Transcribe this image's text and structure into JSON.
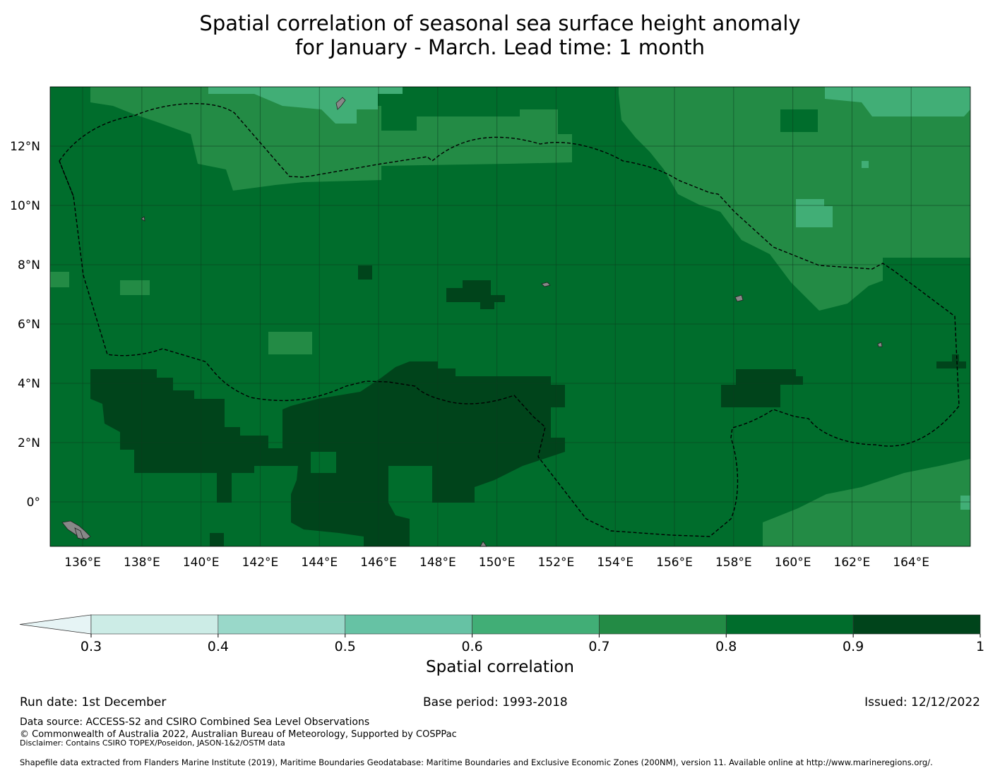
{
  "title": {
    "line1": "Spatial correlation of seasonal sea surface height anomaly",
    "line2": "for January - March. Lead time: 1 month"
  },
  "chart_data": {
    "type": "heatmap",
    "title": "Spatial correlation of seasonal sea surface height anomaly for January - March. Lead time: 1 month",
    "x_ticks": [
      "136°E",
      "138°E",
      "140°E",
      "142°E",
      "144°E",
      "146°E",
      "148°E",
      "150°E",
      "152°E",
      "154°E",
      "156°E",
      "158°E",
      "160°E",
      "162°E",
      "164°E"
    ],
    "y_ticks": [
      "12°N",
      "10°N",
      "8°N",
      "6°N",
      "4°N",
      "2°N",
      "0°"
    ],
    "lon_range": [
      134.9,
      166.0
    ],
    "lat_range": [
      -1.5,
      14.0
    ],
    "colorbar": {
      "label": "Spatial correlation",
      "boundaries": [
        "0.3",
        "0.4",
        "0.5",
        "0.6",
        "0.7",
        "0.8",
        "0.9",
        "1"
      ],
      "colors": [
        "#e6f4f5",
        "#ccece6",
        "#99d8c9",
        "#66c2a4",
        "#41ae76",
        "#238b45",
        "#006d2c",
        "#00441b"
      ],
      "extend": "min"
    },
    "regions": [
      {
        "value_range": "0.9-1",
        "color": "#00441b",
        "areas": [
          "136-145°E, 0-4°N",
          "144-152°E, -1-4°N",
          "157-161°E, 3-4.5°N",
          "148-150°E, 6.5-7.5°N",
          "Near 165.5°E, 4.5°N"
        ]
      },
      {
        "value_range": "0.8-0.9",
        "color": "#006d2c",
        "areas": [
          "Central domain from 136°E to 166°E, -1.5°N to 12°N"
        ]
      },
      {
        "value_range": "0.7-0.8",
        "color": "#238b45",
        "areas": [
          "North-east 153-166°E, 6-14°N",
          "South-east 157-166°E, -1.5-1°N",
          "North-west 137-150°E, 11-14°N"
        ]
      },
      {
        "value_range": "0.6-0.7",
        "color": "#41ae76",
        "areas": [
          "141-146°E, 13-14°N",
          "162-166°E, 13-14°N",
          "160-161°E, 9.5-10.5°N"
        ]
      }
    ]
  },
  "footer": {
    "run_date": "Run date: 1st December",
    "base_period": "Base period: 1993-2018",
    "issued": "Issued: 12/12/2022",
    "data_source": "Data source: ACCESS-S2 and CSIRO Combined Sea Level Observations",
    "copyright": "© Commonwealth of Australia 2022, Australian Bureau of Meteorology, Supported by COSPPac",
    "disclaimer": "Disclaimer: Contains CSIRO TOPEX/Poseidon, JASON-1&2/OSTM data",
    "shapefile": "Shapefile data extracted from Flanders Marine Institute (2019), Maritime Boundaries Geodatabase: Maritime Boundaries and Exclusive Economic Zones (200NM), version 11. Available online at http://www.marineregions.org/."
  },
  "colors": {
    "land": "#888888",
    "grid": "#0b3a1e",
    "eez_boundary": "#000000"
  }
}
